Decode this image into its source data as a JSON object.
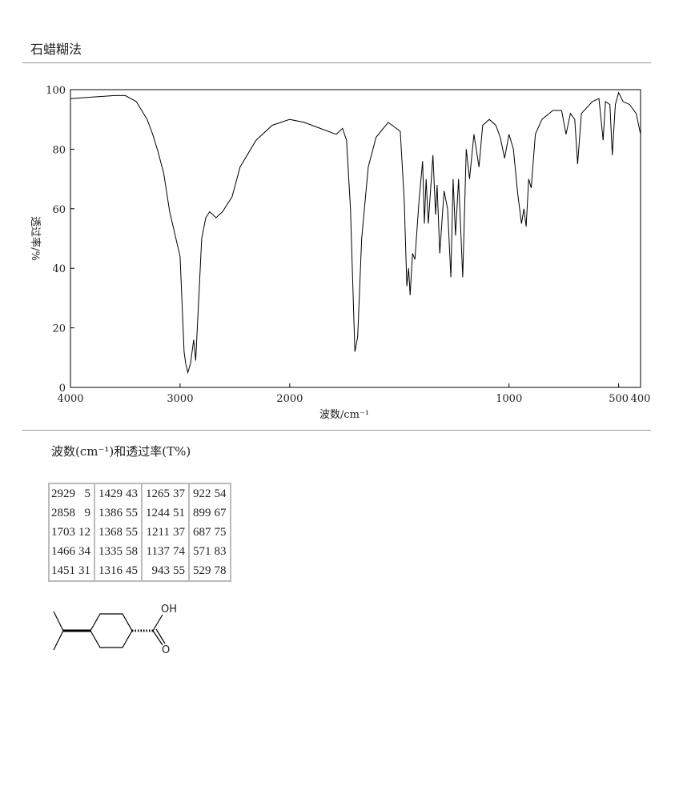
{
  "header": {
    "title": "石蜡糊法"
  },
  "chart_data": {
    "type": "line",
    "xlabel": "波数/cm⁻¹",
    "ylabel": "透过率/%",
    "xlim": [
      4000,
      400
    ],
    "ylim": [
      0,
      100
    ],
    "xticks": [
      4000,
      3000,
      2000,
      1000,
      500,
      400
    ],
    "yticks": [
      0,
      20,
      40,
      60,
      80,
      100
    ],
    "x_scale_break": 2000,
    "x_scale_factor": 2,
    "color": "#000000",
    "x": [
      4000,
      3800,
      3600,
      3500,
      3400,
      3300,
      3250,
      3200,
      3150,
      3095,
      3000,
      2964,
      2949,
      2929,
      2905,
      2876,
      2858,
      2832,
      2803,
      2766,
      2730,
      2672,
      2613,
      2526,
      2453,
      2307,
      2161,
      2000,
      1934,
      1861,
      1788,
      1759,
      1741,
      1723,
      1703,
      1690,
      1672,
      1642,
      1606,
      1551,
      1496,
      1478,
      1466,
      1458,
      1451,
      1440,
      1429,
      1410,
      1394,
      1386,
      1378,
      1368,
      1347,
      1335,
      1328,
      1316,
      1296,
      1280,
      1265,
      1255,
      1244,
      1230,
      1211,
      1195,
      1180,
      1160,
      1137,
      1120,
      1090,
      1060,
      1040,
      1020,
      1000,
      980,
      960,
      943,
      932,
      922,
      910,
      899,
      880,
      850,
      800,
      760,
      740,
      720,
      700,
      687,
      670,
      620,
      590,
      580,
      571,
      560,
      540,
      529,
      515,
      500,
      480,
      450,
      420,
      400
    ],
    "values": [
      97,
      97.5,
      98,
      98,
      96,
      90,
      85,
      79,
      72,
      59,
      44,
      12,
      8,
      5,
      8,
      16,
      9,
      28,
      50,
      57,
      59,
      57,
      59,
      64,
      74,
      83,
      88,
      90,
      89,
      87,
      85,
      87,
      83,
      60,
      12,
      17,
      50,
      74,
      84,
      89,
      86,
      63,
      34,
      40,
      31,
      45,
      43,
      63,
      76,
      55,
      70,
      55,
      78,
      58,
      68,
      45,
      66,
      60,
      37,
      70,
      51,
      70,
      37,
      80,
      70,
      85,
      74,
      88,
      90,
      88,
      84,
      77,
      85,
      80,
      65,
      55,
      60,
      54,
      70,
      67,
      85,
      90,
      93,
      93,
      85,
      92,
      90,
      75,
      92,
      96,
      97,
      90,
      83,
      96,
      95,
      78,
      95,
      99,
      96,
      95,
      92,
      85
    ]
  },
  "table": {
    "caption": "波数(cm⁻¹)和透过率(T%)",
    "rows": [
      [
        [
          2929,
          5
        ],
        [
          1429,
          43
        ],
        [
          1265,
          37
        ],
        [
          922,
          54
        ]
      ],
      [
        [
          2858,
          9
        ],
        [
          1386,
          55
        ],
        [
          1244,
          51
        ],
        [
          899,
          67
        ]
      ],
      [
        [
          1703,
          12
        ],
        [
          1368,
          55
        ],
        [
          1211,
          37
        ],
        [
          687,
          75
        ]
      ],
      [
        [
          1466,
          34
        ],
        [
          1335,
          58
        ],
        [
          1137,
          74
        ],
        [
          571,
          83
        ]
      ],
      [
        [
          1451,
          31
        ],
        [
          1316,
          45
        ],
        [
          943,
          55
        ],
        [
          529,
          78
        ]
      ]
    ]
  },
  "structure": {
    "labels": [
      "OH",
      "O"
    ]
  }
}
